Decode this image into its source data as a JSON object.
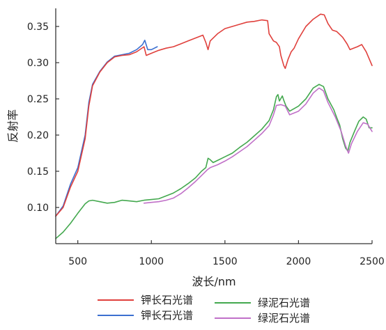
{
  "chart_data": {
    "type": "line",
    "title": "",
    "xlabel": "波长/nm",
    "ylabel": "反射率",
    "xlim": [
      350,
      2500
    ],
    "ylim": [
      0.05,
      0.375
    ],
    "xticks": [
      500,
      1000,
      1500,
      2000,
      2500
    ],
    "xtick_labels": [
      "500",
      "1000",
      "1500",
      "2000",
      "2500"
    ],
    "yticks": [
      0.1,
      0.15,
      0.2,
      0.25,
      0.3,
      0.35
    ],
    "ytick_labels": [
      "0.10",
      "0.15",
      "0.20",
      "0.25",
      "0.30",
      "0.35"
    ],
    "grid": false,
    "legend_position": "bottom",
    "series": [
      {
        "name": "钾长石光谱",
        "color": "#e0403c",
        "points": [
          [
            350,
            0.088
          ],
          [
            400,
            0.1
          ],
          [
            450,
            0.128
          ],
          [
            500,
            0.15
          ],
          [
            550,
            0.195
          ],
          [
            575,
            0.24
          ],
          [
            600,
            0.268
          ],
          [
            650,
            0.287
          ],
          [
            700,
            0.3
          ],
          [
            750,
            0.308
          ],
          [
            800,
            0.31
          ],
          [
            850,
            0.311
          ],
          [
            900,
            0.315
          ],
          [
            950,
            0.322
          ],
          [
            965,
            0.31
          ],
          [
            1000,
            0.313
          ],
          [
            1050,
            0.317
          ],
          [
            1100,
            0.32
          ],
          [
            1150,
            0.322
          ],
          [
            1200,
            0.326
          ],
          [
            1250,
            0.33
          ],
          [
            1300,
            0.334
          ],
          [
            1350,
            0.338
          ],
          [
            1370,
            0.328
          ],
          [
            1385,
            0.318
          ],
          [
            1400,
            0.33
          ],
          [
            1450,
            0.34
          ],
          [
            1500,
            0.347
          ],
          [
            1550,
            0.35
          ],
          [
            1600,
            0.353
          ],
          [
            1650,
            0.356
          ],
          [
            1700,
            0.357
          ],
          [
            1750,
            0.359
          ],
          [
            1790,
            0.358
          ],
          [
            1800,
            0.34
          ],
          [
            1830,
            0.33
          ],
          [
            1850,
            0.328
          ],
          [
            1870,
            0.322
          ],
          [
            1880,
            0.31
          ],
          [
            1900,
            0.296
          ],
          [
            1910,
            0.292
          ],
          [
            1930,
            0.305
          ],
          [
            1950,
            0.315
          ],
          [
            1970,
            0.32
          ],
          [
            2000,
            0.333
          ],
          [
            2050,
            0.35
          ],
          [
            2100,
            0.36
          ],
          [
            2150,
            0.367
          ],
          [
            2175,
            0.366
          ],
          [
            2200,
            0.354
          ],
          [
            2230,
            0.345
          ],
          [
            2260,
            0.343
          ],
          [
            2300,
            0.335
          ],
          [
            2330,
            0.326
          ],
          [
            2350,
            0.318
          ],
          [
            2400,
            0.322
          ],
          [
            2430,
            0.325
          ],
          [
            2460,
            0.315
          ],
          [
            2500,
            0.296
          ]
        ]
      },
      {
        "name": "钾长石光谱",
        "color": "#3b6fd0",
        "points": [
          [
            350,
            0.088
          ],
          [
            400,
            0.102
          ],
          [
            450,
            0.132
          ],
          [
            500,
            0.155
          ],
          [
            550,
            0.2
          ],
          [
            575,
            0.245
          ],
          [
            600,
            0.27
          ],
          [
            650,
            0.288
          ],
          [
            700,
            0.301
          ],
          [
            750,
            0.309
          ],
          [
            800,
            0.311
          ],
          [
            850,
            0.313
          ],
          [
            900,
            0.318
          ],
          [
            940,
            0.325
          ],
          [
            955,
            0.331
          ],
          [
            975,
            0.318
          ],
          [
            1000,
            0.318
          ],
          [
            1040,
            0.322
          ]
        ]
      },
      {
        "name": "绿泥石光谱",
        "color": "#43a84e",
        "points": [
          [
            350,
            0.057
          ],
          [
            400,
            0.066
          ],
          [
            450,
            0.078
          ],
          [
            500,
            0.092
          ],
          [
            550,
            0.105
          ],
          [
            575,
            0.109
          ],
          [
            600,
            0.11
          ],
          [
            650,
            0.108
          ],
          [
            700,
            0.106
          ],
          [
            750,
            0.107
          ],
          [
            800,
            0.11
          ],
          [
            850,
            0.109
          ],
          [
            900,
            0.108
          ],
          [
            950,
            0.11
          ],
          [
            1000,
            0.111
          ],
          [
            1050,
            0.112
          ],
          [
            1100,
            0.116
          ],
          [
            1150,
            0.12
          ],
          [
            1200,
            0.126
          ],
          [
            1250,
            0.133
          ],
          [
            1300,
            0.141
          ],
          [
            1340,
            0.15
          ],
          [
            1370,
            0.155
          ],
          [
            1385,
            0.168
          ],
          [
            1400,
            0.166
          ],
          [
            1420,
            0.162
          ],
          [
            1450,
            0.165
          ],
          [
            1500,
            0.17
          ],
          [
            1550,
            0.175
          ],
          [
            1600,
            0.183
          ],
          [
            1650,
            0.19
          ],
          [
            1700,
            0.199
          ],
          [
            1750,
            0.208
          ],
          [
            1800,
            0.22
          ],
          [
            1830,
            0.235
          ],
          [
            1850,
            0.253
          ],
          [
            1860,
            0.256
          ],
          [
            1870,
            0.247
          ],
          [
            1890,
            0.254
          ],
          [
            1900,
            0.248
          ],
          [
            1915,
            0.24
          ],
          [
            1940,
            0.233
          ],
          [
            2000,
            0.24
          ],
          [
            2050,
            0.25
          ],
          [
            2100,
            0.265
          ],
          [
            2140,
            0.27
          ],
          [
            2170,
            0.267
          ],
          [
            2200,
            0.25
          ],
          [
            2240,
            0.235
          ],
          [
            2260,
            0.224
          ],
          [
            2280,
            0.214
          ],
          [
            2300,
            0.195
          ],
          [
            2320,
            0.182
          ],
          [
            2335,
            0.178
          ],
          [
            2350,
            0.19
          ],
          [
            2380,
            0.205
          ],
          [
            2410,
            0.219
          ],
          [
            2440,
            0.225
          ],
          [
            2460,
            0.222
          ],
          [
            2480,
            0.21
          ],
          [
            2500,
            0.21
          ]
        ]
      },
      {
        "name": "绿泥石光谱",
        "color": "#c070c8",
        "points": [
          [
            950,
            0.106
          ],
          [
            1000,
            0.107
          ],
          [
            1050,
            0.108
          ],
          [
            1100,
            0.11
          ],
          [
            1150,
            0.113
          ],
          [
            1200,
            0.119
          ],
          [
            1250,
            0.127
          ],
          [
            1300,
            0.136
          ],
          [
            1350,
            0.146
          ],
          [
            1380,
            0.152
          ],
          [
            1400,
            0.155
          ],
          [
            1450,
            0.159
          ],
          [
            1500,
            0.164
          ],
          [
            1550,
            0.17
          ],
          [
            1600,
            0.177
          ],
          [
            1650,
            0.184
          ],
          [
            1700,
            0.193
          ],
          [
            1750,
            0.202
          ],
          [
            1800,
            0.213
          ],
          [
            1830,
            0.228
          ],
          [
            1850,
            0.241
          ],
          [
            1880,
            0.242
          ],
          [
            1910,
            0.24
          ],
          [
            1940,
            0.228
          ],
          [
            2000,
            0.233
          ],
          [
            2050,
            0.243
          ],
          [
            2100,
            0.258
          ],
          [
            2140,
            0.265
          ],
          [
            2170,
            0.261
          ],
          [
            2200,
            0.245
          ],
          [
            2250,
            0.225
          ],
          [
            2290,
            0.205
          ],
          [
            2320,
            0.185
          ],
          [
            2340,
            0.175
          ],
          [
            2360,
            0.188
          ],
          [
            2400,
            0.205
          ],
          [
            2440,
            0.217
          ],
          [
            2470,
            0.215
          ],
          [
            2500,
            0.205
          ]
        ]
      }
    ]
  }
}
